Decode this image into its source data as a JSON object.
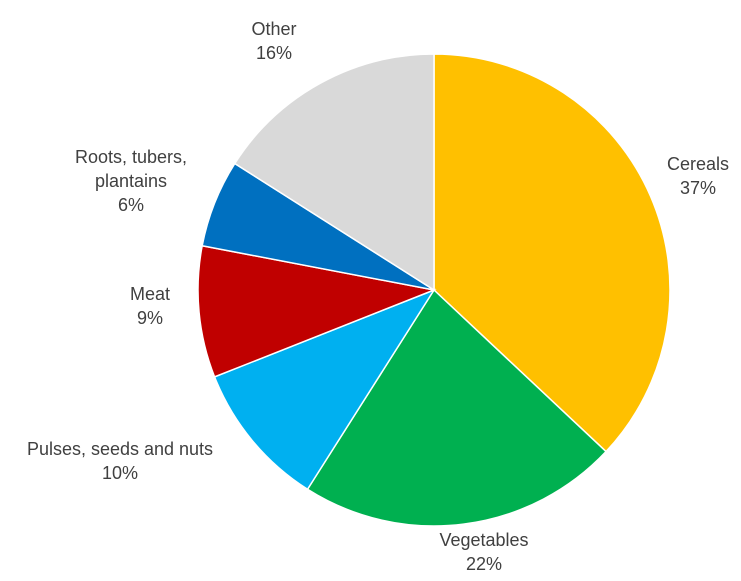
{
  "chart_data": {
    "type": "pie",
    "start_angle_deg": 0,
    "direction": "clockwise",
    "slices": [
      {
        "label_lines": [
          "Cereals"
        ],
        "label_pct": "37%",
        "value": 37,
        "color": "#FFC000"
      },
      {
        "label_lines": [
          "Vegetables"
        ],
        "label_pct": "22%",
        "value": 22,
        "color": "#00B050"
      },
      {
        "label_lines": [
          "Pulses, seeds and nuts"
        ],
        "label_pct": "10%",
        "value": 10,
        "color": "#00B0F0"
      },
      {
        "label_lines": [
          "Meat"
        ],
        "label_pct": "9%",
        "value": 9,
        "color": "#C00000"
      },
      {
        "label_lines": [
          "Roots, tubers,",
          "plantains"
        ],
        "label_pct": "6%",
        "value": 6,
        "color": "#0070C0"
      },
      {
        "label_lines": [
          "Other"
        ],
        "label_pct": "16%",
        "value": 16,
        "color": "#D9D9D9"
      }
    ]
  }
}
